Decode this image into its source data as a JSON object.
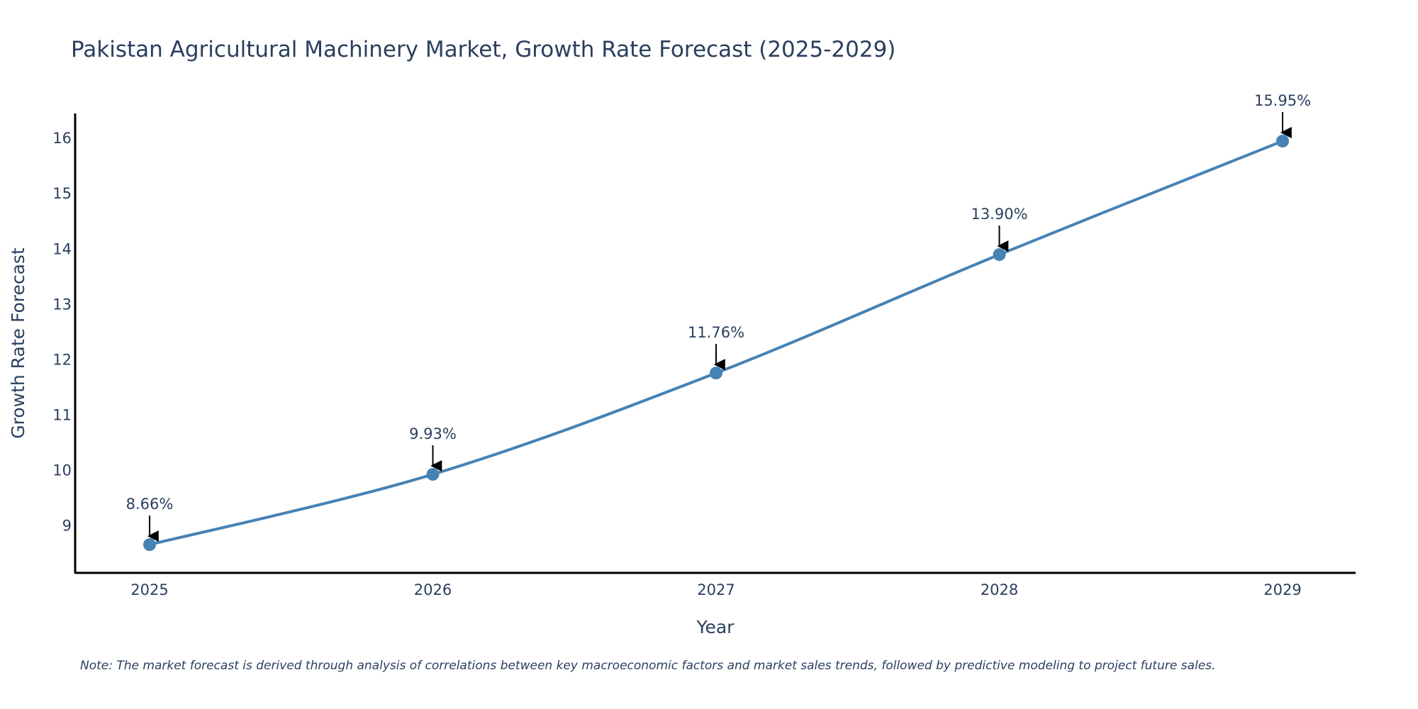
{
  "chart_data": {
    "type": "line",
    "title": "Pakistan Agricultural Machinery Market, Growth Rate Forecast (2025-2029)",
    "xlabel": "Year",
    "ylabel": "Growth Rate Forecast",
    "categories": [
      "2025",
      "2026",
      "2027",
      "2028",
      "2029"
    ],
    "series": [
      {
        "name": "Growth Rate Forecast",
        "values": [
          8.66,
          9.93,
          11.76,
          13.9,
          15.95
        ],
        "labels": [
          "8.66%",
          "9.93%",
          "11.76%",
          "13.90%",
          "15.95%"
        ],
        "color": "#4682b4"
      }
    ],
    "ylim": [
      8.15,
      16.45
    ],
    "yticks": [
      9,
      10,
      11,
      12,
      13,
      14,
      15,
      16
    ],
    "grid": false,
    "line_shape": "spline",
    "note": "Note: The market forecast is derived through analysis of correlations between key macroeconomic factors and market sales trends, followed by predictive modeling to project future sales."
  }
}
